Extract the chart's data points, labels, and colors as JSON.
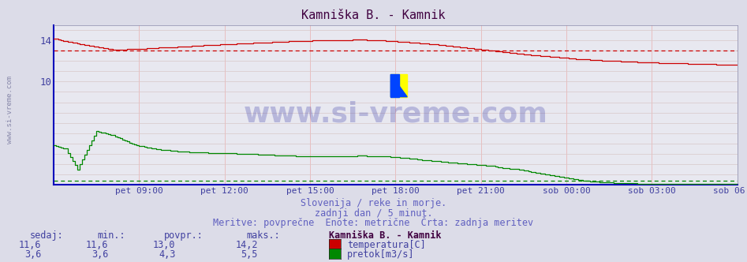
{
  "title": "Kamniška B. - Kamnik",
  "title_color": "#400040",
  "bg_color": "#dcdce8",
  "plot_bg_color": "#e8e8f0",
  "grid_color_h": "#d0c8d0",
  "grid_color_v": "#e8c0c0",
  "x_labels": [
    "pet 09:00",
    "pet 12:00",
    "pet 15:00",
    "pet 18:00",
    "pet 21:00",
    "sob 00:00",
    "sob 03:00",
    "sob 06:00"
  ],
  "x_label_color": "#4040a0",
  "y_ticks": [
    10,
    14
  ],
  "y_label_color": "#4040a0",
  "temp_color": "#cc0000",
  "flow_color": "#008800",
  "watermark_text": "www.si-vreme.com",
  "subtitle1": "Slovenija / reke in morje.",
  "subtitle2": "zadnji dan / 5 minut.",
  "subtitle3": "Meritve: povprečne  Enote: metrične  Črta: zadnja meritev",
  "subtitle_color": "#6060c0",
  "legend_title": "Kamniška B. - Kamnik",
  "legend_title_color": "#400040",
  "legend_color": "#4040a0",
  "sidebar_text": "www.si-vreme.com",
  "sidebar_color": "#8888aa",
  "temp_avg_value": 13.0,
  "flow_avg_value": 0.35,
  "y_min": 0,
  "y_max": 15.5,
  "n_points": 289,
  "temp_keypoints": [
    [
      0,
      14.2
    ],
    [
      5,
      13.9
    ],
    [
      15,
      13.5
    ],
    [
      25,
      13.1
    ],
    [
      35,
      13.15
    ],
    [
      45,
      13.3
    ],
    [
      55,
      13.4
    ],
    [
      65,
      13.55
    ],
    [
      80,
      13.7
    ],
    [
      100,
      13.9
    ],
    [
      115,
      14.0
    ],
    [
      130,
      14.05
    ],
    [
      140,
      13.95
    ],
    [
      150,
      13.8
    ],
    [
      160,
      13.6
    ],
    [
      170,
      13.35
    ],
    [
      180,
      13.1
    ],
    [
      190,
      12.85
    ],
    [
      200,
      12.6
    ],
    [
      210,
      12.4
    ],
    [
      220,
      12.2
    ],
    [
      230,
      12.05
    ],
    [
      240,
      11.95
    ],
    [
      250,
      11.85
    ],
    [
      260,
      11.78
    ],
    [
      270,
      11.72
    ],
    [
      288,
      11.6
    ]
  ],
  "flow_keypoints": [
    [
      0,
      3.8
    ],
    [
      5,
      3.5
    ],
    [
      10,
      1.5
    ],
    [
      18,
      5.2
    ],
    [
      25,
      4.8
    ],
    [
      35,
      3.8
    ],
    [
      45,
      3.4
    ],
    [
      55,
      3.2
    ],
    [
      65,
      3.1
    ],
    [
      80,
      3.0
    ],
    [
      100,
      2.8
    ],
    [
      115,
      2.75
    ],
    [
      130,
      2.8
    ],
    [
      140,
      2.75
    ],
    [
      150,
      2.55
    ],
    [
      155,
      2.4
    ],
    [
      160,
      2.3
    ],
    [
      165,
      2.2
    ],
    [
      170,
      2.1
    ],
    [
      175,
      2.0
    ],
    [
      180,
      1.9
    ],
    [
      185,
      1.8
    ],
    [
      190,
      1.6
    ],
    [
      195,
      1.5
    ],
    [
      200,
      1.3
    ],
    [
      205,
      1.1
    ],
    [
      210,
      0.9
    ],
    [
      215,
      0.7
    ],
    [
      220,
      0.5
    ],
    [
      225,
      0.35
    ],
    [
      230,
      0.25
    ],
    [
      240,
      0.15
    ],
    [
      250,
      0.1
    ],
    [
      260,
      0.08
    ],
    [
      270,
      0.07
    ],
    [
      288,
      0.05
    ]
  ]
}
